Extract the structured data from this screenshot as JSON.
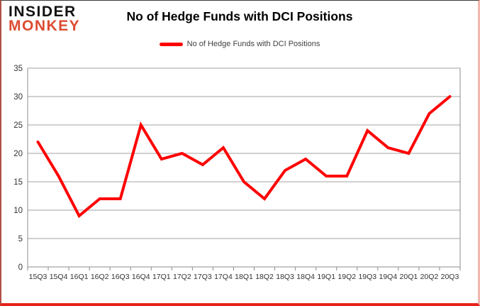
{
  "brand": {
    "line1": "INSIDER",
    "line2": "MONKEY",
    "color1": "#121212",
    "color2": "#dd4b32"
  },
  "chart_data": {
    "type": "line",
    "title": "No of Hedge Funds with DCI Positions",
    "categories": [
      "15Q3",
      "15Q4",
      "16Q1",
      "16Q2",
      "16Q3",
      "16Q4",
      "17Q1",
      "17Q2",
      "17Q3",
      "17Q4",
      "18Q1",
      "18Q2",
      "18Q3",
      "18Q4",
      "19Q1",
      "19Q2",
      "19Q3",
      "19Q4",
      "20Q1",
      "20Q2",
      "20Q3"
    ],
    "series": [
      {
        "name": "No of Hedge Funds with DCI Positions",
        "color": "#ff0000",
        "values": [
          22,
          16,
          9,
          12,
          12,
          25,
          19,
          20,
          18,
          21,
          15,
          12,
          17,
          19,
          16,
          16,
          24,
          21,
          20,
          27,
          30
        ]
      }
    ],
    "ylim": [
      0,
      35
    ],
    "ytick_step": 5,
    "yticks": [
      0,
      5,
      10,
      15,
      20,
      25,
      30,
      35
    ],
    "grid": true,
    "legend_position": "top",
    "xlabel": "",
    "ylabel": ""
  },
  "style": {
    "gridline_color": "#a3a3a3",
    "axis_color": "#8c8c8c",
    "tick_label_color": "#333333",
    "line_width": 4
  }
}
